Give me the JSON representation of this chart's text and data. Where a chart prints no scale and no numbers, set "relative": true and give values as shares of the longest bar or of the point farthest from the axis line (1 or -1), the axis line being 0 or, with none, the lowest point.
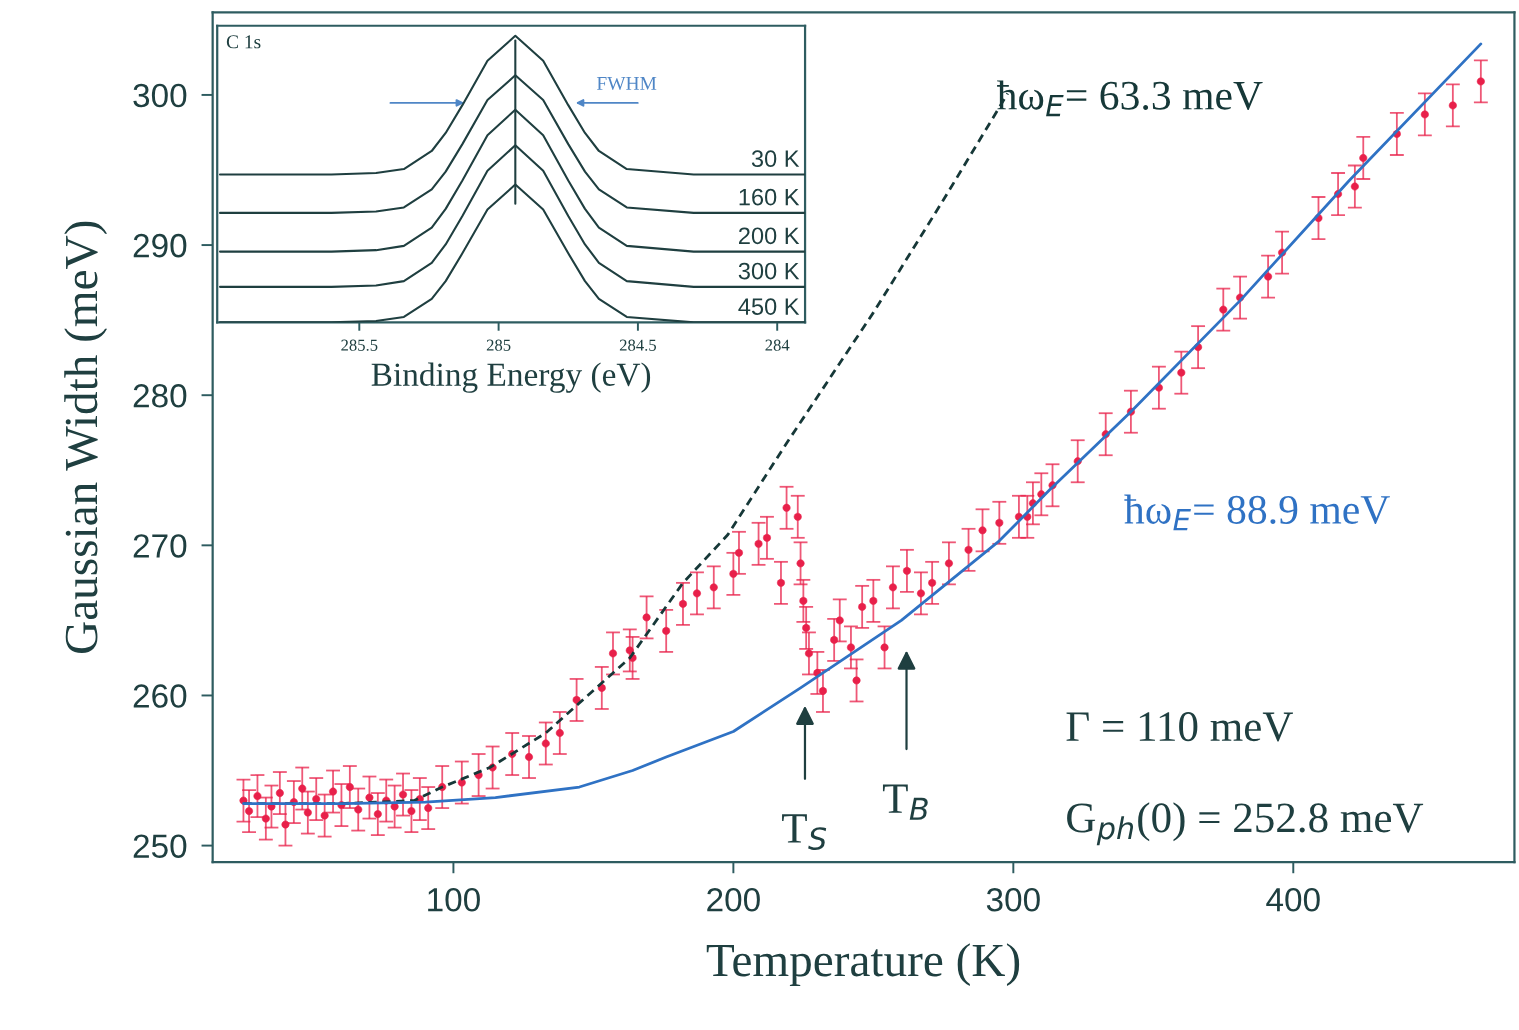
{
  "chart_data": [
    {
      "type": "scatter",
      "xlabel": "Temperature (K)",
      "ylabel": "Gaussian Width (meV)",
      "xlim": [
        14,
        479
      ],
      "ylim": [
        248.9,
        305.5
      ],
      "xticks": [
        100,
        200,
        300,
        400
      ],
      "yticks": [
        250,
        260,
        270,
        280,
        290,
        300
      ],
      "series": [
        {
          "color": "#e8204a",
          "marker": "circle",
          "x": [
            25,
            27,
            30,
            33,
            35,
            38,
            40,
            43,
            46,
            48,
            51,
            54,
            57,
            60,
            63,
            66,
            70,
            73,
            76,
            79,
            82,
            85,
            88,
            91,
            96,
            103,
            109,
            114,
            121,
            127,
            133,
            138,
            144,
            153,
            157,
            163,
            164,
            169,
            176,
            182,
            187,
            193,
            200,
            202,
            209,
            212,
            217,
            219,
            223,
            224,
            225,
            226,
            227,
            230,
            232,
            236,
            238,
            242,
            244,
            246,
            250,
            254,
            257,
            262,
            267,
            271,
            277,
            284,
            289,
            295,
            302,
            307,
            305,
            310,
            314,
            323,
            333,
            342,
            352,
            360,
            366,
            375,
            381,
            391,
            396,
            409,
            416,
            422,
            425,
            437,
            447,
            457,
            467
          ],
          "values": [
            253.0,
            252.3,
            253.3,
            251.8,
            252.6,
            253.5,
            251.4,
            252.9,
            253.8,
            252.2,
            253.1,
            252.0,
            253.6,
            252.7,
            253.9,
            252.4,
            253.2,
            252.1,
            253.0,
            252.6,
            253.4,
            252.3,
            253.1,
            252.5,
            253.9,
            254.2,
            254.7,
            255.2,
            256.1,
            255.9,
            256.8,
            257.5,
            259.7,
            260.5,
            262.8,
            263.0,
            262.5,
            265.2,
            264.3,
            266.1,
            266.8,
            267.2,
            268.1,
            269.5,
            270.1,
            270.5,
            267.5,
            272.5,
            271.9,
            268.8,
            266.3,
            264.5,
            262.8,
            261.5,
            260.3,
            263.7,
            265.0,
            263.2,
            261.0,
            265.9,
            266.3,
            263.2,
            267.2,
            268.3,
            266.8,
            267.5,
            268.8,
            269.7,
            271.0,
            271.5,
            271.9,
            272.8,
            271.9,
            273.4,
            274.0,
            275.6,
            277.4,
            278.9,
            280.5,
            281.5,
            283.2,
            285.7,
            286.5,
            287.9,
            289.5,
            291.8,
            293.4,
            293.9,
            295.8,
            297.4,
            298.7,
            299.3,
            300.9
          ],
          "errors": [
            1.4,
            1.4,
            1.4,
            1.4,
            1.4,
            1.4,
            1.4,
            1.4,
            1.4,
            1.4,
            1.4,
            1.4,
            1.4,
            1.4,
            1.4,
            1.4,
            1.4,
            1.4,
            1.4,
            1.4,
            1.4,
            1.4,
            1.4,
            1.4,
            1.4,
            1.4,
            1.4,
            1.4,
            1.4,
            1.4,
            1.4,
            1.4,
            1.4,
            1.4,
            1.4,
            1.4,
            1.4,
            1.4,
            1.4,
            1.4,
            1.4,
            1.4,
            1.4,
            1.4,
            1.4,
            1.4,
            1.4,
            1.4,
            1.4,
            1.4,
            1.4,
            1.4,
            1.4,
            1.4,
            1.4,
            1.4,
            1.4,
            1.4,
            1.4,
            1.4,
            1.4,
            1.4,
            1.4,
            1.4,
            1.4,
            1.4,
            1.4,
            1.4,
            1.4,
            1.4,
            1.4,
            1.4,
            1.4,
            1.4,
            1.4,
            1.4,
            1.4,
            1.4,
            1.4,
            1.4,
            1.4,
            1.4,
            1.4,
            1.4,
            1.4,
            1.4,
            1.4,
            1.4,
            1.4,
            1.4,
            1.4,
            1.4,
            1.4
          ]
        },
        {
          "type": "line",
          "name": "ħω$_{E}$= 63.3 meV",
          "color": "#163838",
          "line_style": "dashed",
          "x": [
            25,
            60,
            86,
            96,
            113,
            133,
            163,
            182,
            198,
            219,
            250,
            275,
            298
          ],
          "values": [
            252.8,
            252.8,
            253.0,
            253.9,
            255.2,
            257.5,
            262.5,
            267.5,
            270.7,
            276.8,
            285.5,
            293.0,
            300.1
          ]
        },
        {
          "type": "line",
          "name": "ħω$_{E}$= 88.9 meV",
          "color": "#2f72c4",
          "line_style": "solid",
          "x": [
            25,
            60,
            90,
            115,
            145,
            164,
            176,
            200,
            224,
            260,
            295,
            313,
            342,
            381,
            420,
            467
          ],
          "values": [
            252.8,
            252.8,
            252.9,
            253.2,
            253.9,
            255.0,
            255.9,
            257.6,
            260.5,
            265.0,
            270.3,
            273.7,
            278.9,
            286.3,
            294.3,
            303.4
          ]
        }
      ],
      "annotations": [
        "T$_{S}$",
        "T$_{B}$",
        "Γ = 110 meV",
        "G$_{ph}$(0) = 252.8 meV"
      ]
    },
    {
      "type": "line",
      "relative": true,
      "title": "C 1s",
      "xlabel": "Binding Energy (eV)",
      "xlim": [
        286.01,
        283.9
      ],
      "xticks": [
        285.5,
        285,
        284.5,
        284
      ],
      "x": [
        286.0,
        285.6,
        285.44,
        285.34,
        285.24,
        285.19,
        285.13,
        285.04,
        284.94,
        284.84,
        284.75,
        284.69,
        284.64,
        284.54,
        284.3,
        283.9
      ],
      "series": [
        {
          "name": "30 K",
          "color": "#1f3f40",
          "values": [
            0.516,
            0.516,
            0.521,
            0.535,
            0.598,
            0.661,
            0.758,
            0.913,
            1.0,
            0.913,
            0.758,
            0.661,
            0.598,
            0.535,
            0.516,
            0.516
          ]
        },
        {
          "name": "160 K",
          "color": "#1f3f40",
          "values": [
            0.382,
            0.382,
            0.387,
            0.401,
            0.464,
            0.526,
            0.622,
            0.776,
            0.862,
            0.776,
            0.622,
            0.526,
            0.464,
            0.401,
            0.382,
            0.382
          ]
        },
        {
          "name": "200 K",
          "color": "#1f3f40",
          "values": [
            0.247,
            0.247,
            0.252,
            0.267,
            0.331,
            0.396,
            0.495,
            0.653,
            0.742,
            0.653,
            0.495,
            0.396,
            0.331,
            0.267,
            0.247,
            0.247
          ]
        },
        {
          "name": "300 K",
          "color": "#1f3f40",
          "values": [
            0.124,
            0.124,
            0.129,
            0.144,
            0.208,
            0.272,
            0.371,
            0.529,
            0.618,
            0.529,
            0.371,
            0.272,
            0.208,
            0.144,
            0.124,
            0.124
          ]
        },
        {
          "name": "450 K",
          "color": "#1f3f40",
          "values": [
            0,
            0,
            0.005,
            0.019,
            0.082,
            0.144,
            0.241,
            0.394,
            0.481,
            0.394,
            0.241,
            0.144,
            0.082,
            0.019,
            0,
            0
          ]
        }
      ],
      "ref_lines": [
        {
          "axis": "x",
          "value": 284.94,
          "color": "#1f3f40"
        }
      ],
      "annotations": [
        "FWHM"
      ]
    }
  ]
}
